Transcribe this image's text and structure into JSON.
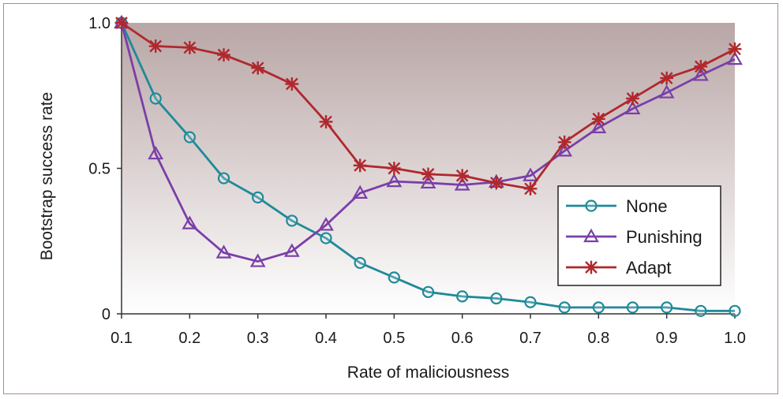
{
  "chart_data": {
    "type": "line",
    "title": "",
    "xlabel": "Rate of maliciousness",
    "ylabel": "Bootstrap success rate",
    "x": [
      0.1,
      0.15,
      0.2,
      0.25,
      0.3,
      0.35,
      0.4,
      0.45,
      0.5,
      0.55,
      0.6,
      0.65,
      0.7,
      0.75,
      0.8,
      0.85,
      0.9,
      0.95,
      1.0
    ],
    "xlim": [
      0.1,
      1.0
    ],
    "ylim": [
      0,
      1.0
    ],
    "x_ticks": [
      0.1,
      0.2,
      0.3,
      0.4,
      0.5,
      0.6,
      0.7,
      0.8,
      0.9,
      1.0
    ],
    "x_tick_labels": [
      "0.1",
      "0.2",
      "0.3",
      "0.4",
      "0.5",
      "0.6",
      "0.7",
      "0.8",
      "0.9",
      "1.0"
    ],
    "y_ticks": [
      0,
      0.5,
      1.0
    ],
    "y_tick_labels": [
      "0",
      "0.5",
      "1.0"
    ],
    "legend_position": "lower-right",
    "series": [
      {
        "name": "None",
        "marker": "circle",
        "color": "#1f8a99",
        "values": [
          1.0,
          0.74,
          0.607,
          0.466,
          0.4,
          0.32,
          0.26,
          0.175,
          0.125,
          0.075,
          0.06,
          0.053,
          0.04,
          0.022,
          0.022,
          0.022,
          0.022,
          0.01,
          0.01
        ]
      },
      {
        "name": "Punishing",
        "marker": "triangle",
        "color": "#7a3fa8",
        "values": [
          1.0,
          0.55,
          0.31,
          0.21,
          0.18,
          0.215,
          0.305,
          0.415,
          0.455,
          0.45,
          0.443,
          0.453,
          0.475,
          0.56,
          0.64,
          0.705,
          0.76,
          0.82,
          0.875
        ]
      },
      {
        "name": "Adapt",
        "marker": "star",
        "color": "#b0282d",
        "values": [
          1.0,
          0.92,
          0.915,
          0.89,
          0.845,
          0.79,
          0.66,
          0.51,
          0.5,
          0.48,
          0.475,
          0.45,
          0.43,
          0.59,
          0.67,
          0.74,
          0.81,
          0.85,
          0.91
        ]
      }
    ]
  }
}
